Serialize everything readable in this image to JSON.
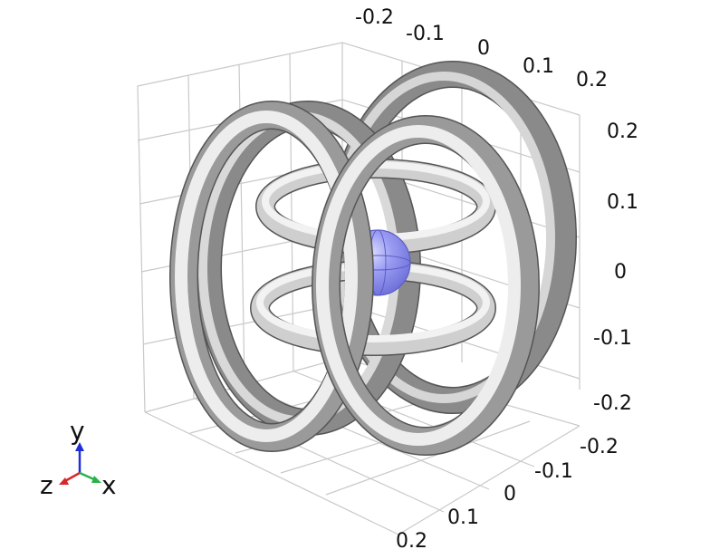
{
  "scene": {
    "background": "#ffffff",
    "ticks": {
      "top_axis": [
        "-0.2",
        "-0.1",
        "0",
        "0.1",
        "0.2"
      ],
      "right_axis": [
        "0.2",
        "0.1",
        "0",
        "-0.1",
        "-0.2"
      ],
      "bottom_axis": [
        "-0.2",
        "-0.1",
        "0",
        "0.1",
        "0.2"
      ]
    },
    "triad": {
      "y_label": "y",
      "z_label": "z",
      "x_label": "x",
      "y_color": "#1f2fd6",
      "z_color": "#d9262b",
      "x_color": "#29b24a"
    },
    "colors": {
      "ring_light": "#eeeeee",
      "ring_mid": "#bdbdbd",
      "ring_dark": "#7e7e7e",
      "ring_edge": "#555555",
      "sphere": "#8e90ee",
      "grid": "#c9c9c9"
    },
    "objects": [
      "outer-ring-left-front",
      "outer-ring-left-back",
      "outer-ring-right-front",
      "outer-ring-right-back",
      "horizontal-ring-upper",
      "horizontal-ring-lower",
      "center-sphere"
    ]
  }
}
